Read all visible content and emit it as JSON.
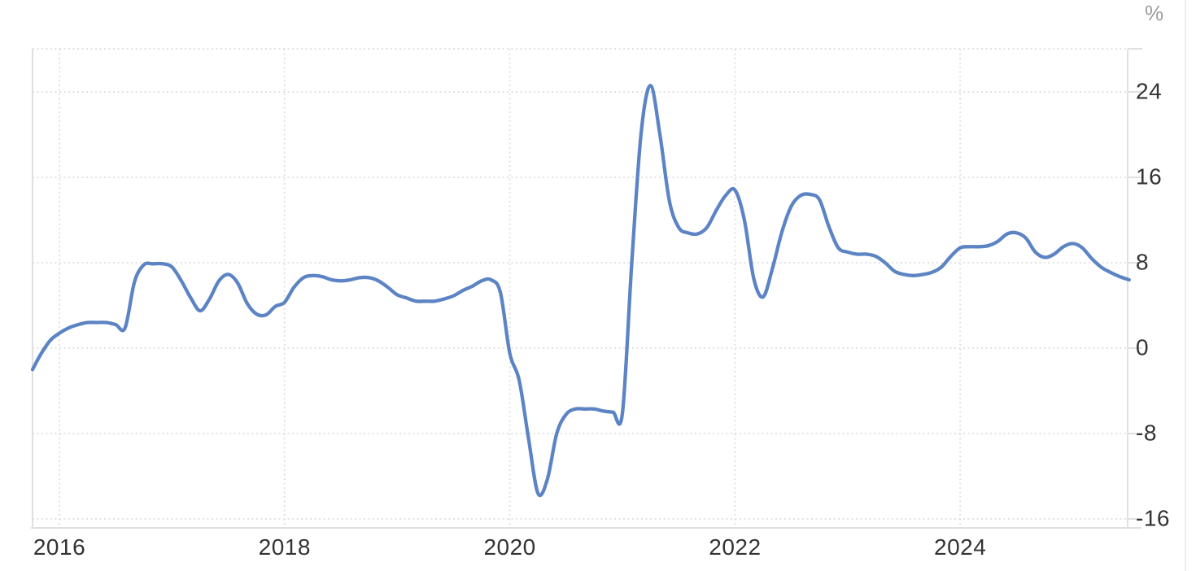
{
  "unit_label": "%",
  "colors": {
    "line": "#5c84c4",
    "grid_dotted": "#e2e2e2",
    "axis_solid": "#e0e0e0",
    "tick_label": "#333333",
    "unit_label": "#9b9b9b",
    "background": "#ffffff"
  },
  "axes": {
    "y_tick_labels": [
      "24",
      "16",
      "8",
      "0",
      "-8",
      "-16"
    ],
    "y_tick_values": [
      24,
      16,
      8,
      0,
      -8,
      -16
    ],
    "x_tick_labels": [
      "2016",
      "2018",
      "2020",
      "2022",
      "2024"
    ],
    "x_tick_years": [
      2016,
      2018,
      2020,
      2022,
      2024
    ]
  },
  "chart_data": {
    "type": "line",
    "title": "",
    "xlabel": "",
    "ylabel": "%",
    "legend": "none",
    "grid": "dotted",
    "ylim": [
      -16,
      24
    ],
    "y_ticks": [
      24,
      16,
      8,
      0,
      -8,
      -16
    ],
    "x_ticks": [
      2016,
      2018,
      2020,
      2022,
      2024
    ],
    "x_range": [
      "2015-10",
      "2025-07"
    ],
    "x": [
      "2015-10",
      "2015-11",
      "2015-12",
      "2016-01",
      "2016-02",
      "2016-03",
      "2016-04",
      "2016-05",
      "2016-06",
      "2016-07",
      "2016-08",
      "2016-09",
      "2016-10",
      "2016-11",
      "2016-12",
      "2017-01",
      "2017-02",
      "2017-03",
      "2017-04",
      "2017-05",
      "2017-06",
      "2017-07",
      "2017-08",
      "2017-09",
      "2017-10",
      "2017-11",
      "2017-12",
      "2018-01",
      "2018-02",
      "2018-03",
      "2018-04",
      "2018-05",
      "2018-06",
      "2018-07",
      "2018-08",
      "2018-09",
      "2018-10",
      "2018-11",
      "2018-12",
      "2019-01",
      "2019-02",
      "2019-03",
      "2019-04",
      "2019-05",
      "2019-06",
      "2019-07",
      "2019-08",
      "2019-09",
      "2019-10",
      "2019-11",
      "2019-12",
      "2020-01",
      "2020-02",
      "2020-03",
      "2020-04",
      "2020-05",
      "2020-06",
      "2020-07",
      "2020-08",
      "2020-09",
      "2020-10",
      "2020-11",
      "2020-12",
      "2021-01",
      "2021-02",
      "2021-03",
      "2021-04",
      "2021-05",
      "2021-06",
      "2021-07",
      "2021-08",
      "2021-09",
      "2021-10",
      "2021-11",
      "2021-12",
      "2022-01",
      "2022-02",
      "2022-03",
      "2022-04",
      "2022-05",
      "2022-06",
      "2022-07",
      "2022-08",
      "2022-09",
      "2022-10",
      "2022-11",
      "2022-12",
      "2023-01",
      "2023-02",
      "2023-03",
      "2023-04",
      "2023-05",
      "2023-06",
      "2023-07",
      "2023-08",
      "2023-09",
      "2023-10",
      "2023-11",
      "2023-12",
      "2024-01",
      "2024-02",
      "2024-03",
      "2024-04",
      "2024-05",
      "2024-06",
      "2024-07",
      "2024-08",
      "2024-09",
      "2024-10",
      "2024-11",
      "2024-12",
      "2025-01",
      "2025-02",
      "2025-03",
      "2025-04",
      "2025-05",
      "2025-06",
      "2025-07"
    ],
    "values": [
      -2.0,
      -0.6,
      0.7,
      1.4,
      1.9,
      2.2,
      2.4,
      2.4,
      2.4,
      2.2,
      1.9,
      6.2,
      7.8,
      7.9,
      7.9,
      7.6,
      6.3,
      4.7,
      3.5,
      4.6,
      6.3,
      6.9,
      6.1,
      4.2,
      3.2,
      3.1,
      3.9,
      4.3,
      5.7,
      6.6,
      6.8,
      6.7,
      6.4,
      6.3,
      6.4,
      6.6,
      6.6,
      6.3,
      5.7,
      5.0,
      4.7,
      4.4,
      4.4,
      4.4,
      4.6,
      4.9,
      5.4,
      5.8,
      6.3,
      6.4,
      5.2,
      -0.5,
      -3.0,
      -8.5,
      -13.6,
      -12.3,
      -8.0,
      -6.2,
      -5.7,
      -5.7,
      -5.7,
      -5.9,
      -6.0,
      -6.1,
      8.0,
      20.2,
      24.6,
      20.0,
      13.8,
      11.3,
      10.8,
      10.7,
      11.3,
      12.9,
      14.3,
      14.8,
      12.0,
      6.5,
      4.8,
      7.5,
      10.9,
      13.3,
      14.3,
      14.4,
      13.9,
      11.4,
      9.4,
      9.0,
      8.8,
      8.8,
      8.6,
      8.0,
      7.2,
      6.9,
      6.8,
      6.9,
      7.1,
      7.6,
      8.6,
      9.4,
      9.5,
      9.5,
      9.6,
      10.0,
      10.7,
      10.8,
      10.3,
      9.0,
      8.5,
      8.8,
      9.5,
      9.8,
      9.4,
      8.4,
      7.6,
      7.1,
      6.7,
      6.4
    ]
  }
}
